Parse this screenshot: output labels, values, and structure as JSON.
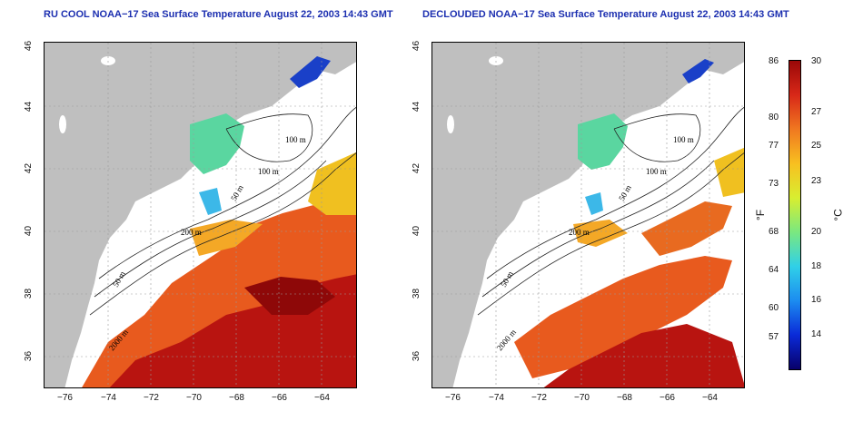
{
  "titles": {
    "left": "RU COOL NOAA−17 Sea Surface Temperature August 22, 2003 14:43 GMT",
    "right": "DECLOUDED NOAA−17 Sea Surface Temperature August 22, 2003 14:43 GMT"
  },
  "axes": {
    "lon_ticks": [
      "−76",
      "−74",
      "−72",
      "−70",
      "−68",
      "−66",
      "−64"
    ],
    "lat_ticks": [
      "46",
      "44",
      "42",
      "40",
      "38",
      "36"
    ]
  },
  "contour_labels": [
    "100 m",
    "100 m",
    "50 m",
    "200 m",
    "50 m",
    "2000 m"
  ],
  "colorbar": {
    "fahrenheit_unit": "°F",
    "celsius_unit": "°C",
    "fahrenheit_ticks": [
      "86",
      "80",
      "77",
      "73",
      "68",
      "64",
      "60",
      "57"
    ],
    "celsius_ticks": [
      "30",
      "27",
      "25",
      "23",
      "20",
      "18",
      "16",
      "14"
    ],
    "colors": [
      "#08006a",
      "#0a2ad8",
      "#1c8cf0",
      "#30d0e8",
      "#7ae880",
      "#d8ee30",
      "#f8c020",
      "#f07820",
      "#d82818",
      "#9a0808"
    ]
  }
}
